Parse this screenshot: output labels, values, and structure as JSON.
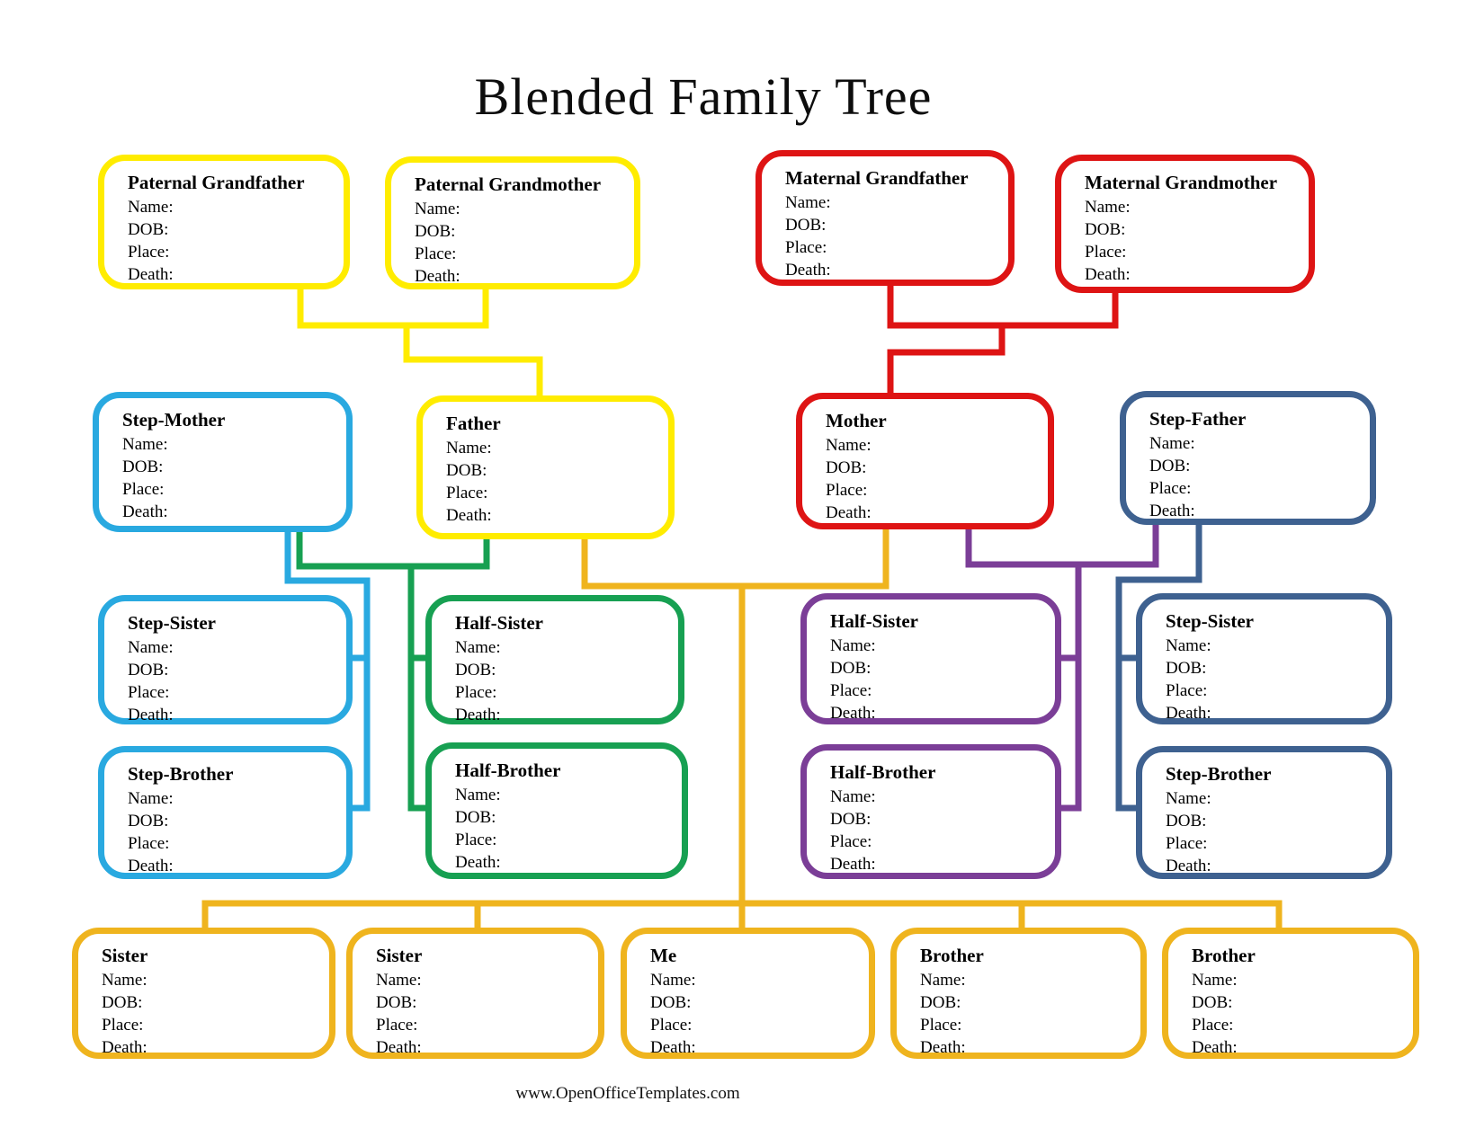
{
  "page": {
    "title": "Blended Family Tree",
    "footer": "www.OpenOfficeTemplates.com",
    "background": "#FFFFFF"
  },
  "field_labels": [
    "Name:",
    "DOB:",
    "Place:",
    "Death:"
  ],
  "colors": {
    "yellow": "#FFEC00",
    "red": "#DE1414",
    "cyan": "#29A9E0",
    "green": "#17A052",
    "gold": "#EFB41E",
    "purple": "#7B3E97",
    "steel": "#3E6190",
    "text": "#000000"
  },
  "boxes": {
    "paternal_grandfather": {
      "title": "Paternal Grandfather"
    },
    "paternal_grandmother": {
      "title": "Paternal Grandmother"
    },
    "maternal_grandfather": {
      "title": "Maternal Grandfather"
    },
    "maternal_grandmother": {
      "title": "Maternal Grandmother"
    },
    "step_mother": {
      "title": "Step-Mother"
    },
    "father": {
      "title": "Father"
    },
    "mother": {
      "title": "Mother"
    },
    "step_father": {
      "title": "Step-Father"
    },
    "step_sister_left": {
      "title": "Step-Sister"
    },
    "half_sister_left": {
      "title": "Half-Sister"
    },
    "half_sister_right": {
      "title": "Half-Sister"
    },
    "step_sister_right": {
      "title": "Step-Sister"
    },
    "step_brother_left": {
      "title": "Step-Brother"
    },
    "half_brother_left": {
      "title": "Half-Brother"
    },
    "half_brother_right": {
      "title": "Half-Brother"
    },
    "step_brother_right": {
      "title": "Step-Brother"
    },
    "sister_1": {
      "title": "Sister"
    },
    "sister_2": {
      "title": "Sister"
    },
    "me": {
      "title": "Me"
    },
    "brother_1": {
      "title": "Brother"
    },
    "brother_2": {
      "title": "Brother"
    }
  }
}
